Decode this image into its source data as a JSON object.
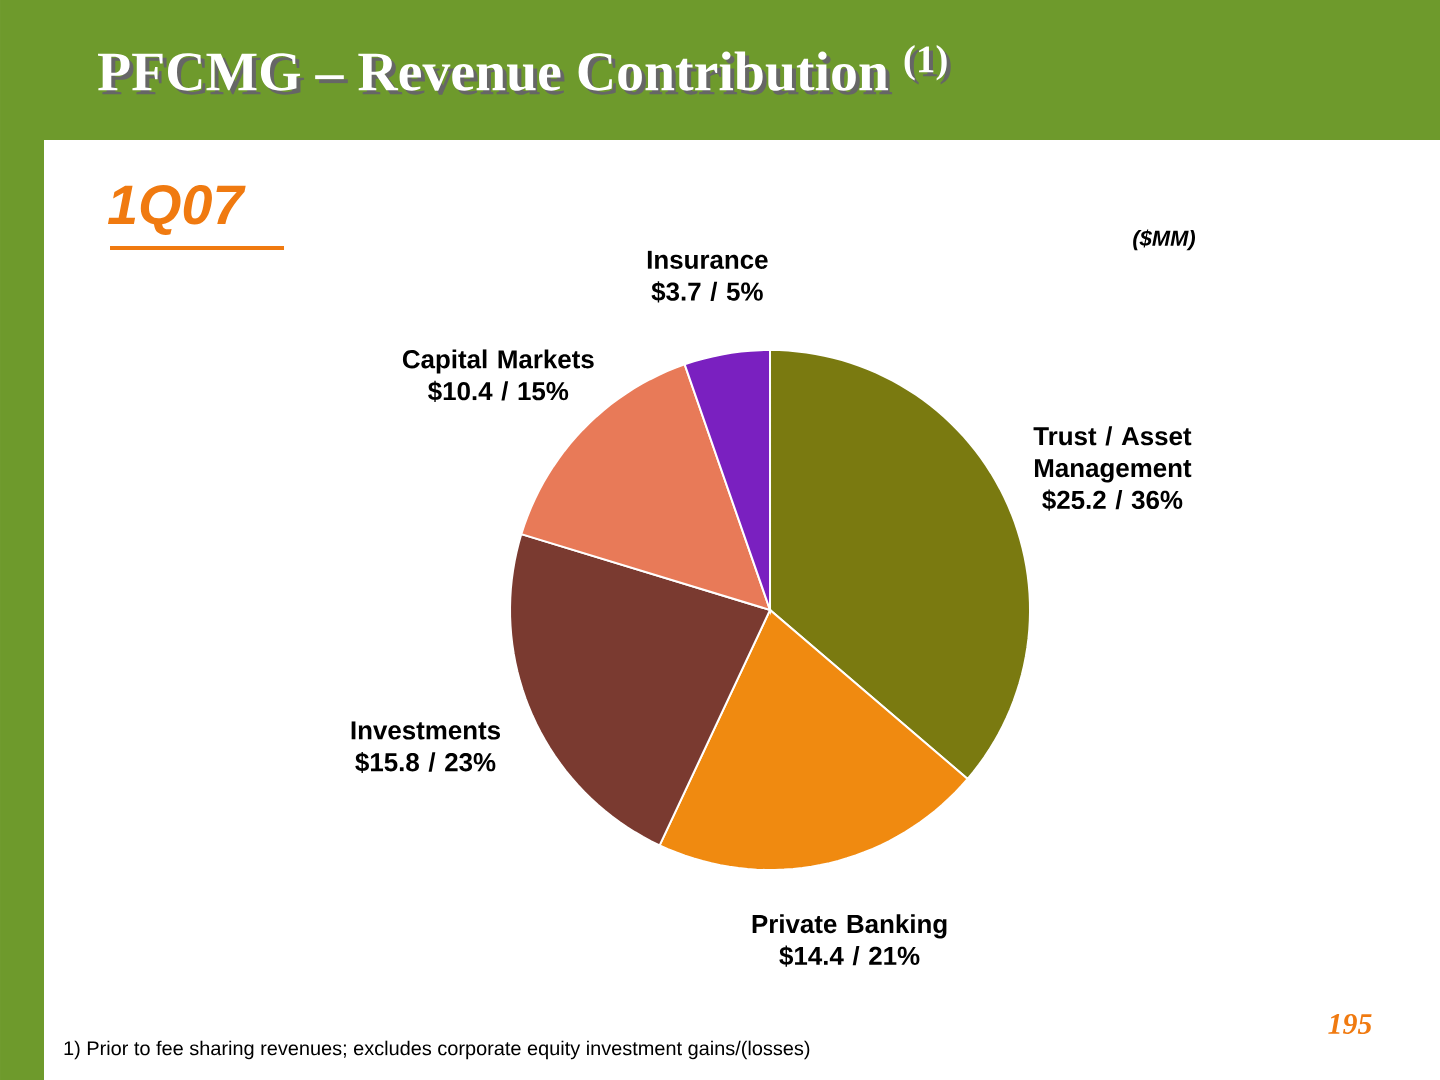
{
  "chart_data": {
    "type": "pie",
    "title": "PFCMG – Revenue Contribution $^{(1)}$",
    "subtitle": "1Q07",
    "categories": [
      "Trust / Asset Management",
      "Private Banking",
      "Investments",
      "Capital Markets",
      "Insurance"
    ],
    "values": [
      25.2,
      14.4,
      15.8,
      10.4,
      3.7
    ],
    "value_labels": [
      "$25.2 /  36%",
      "$14.4 / 21%",
      "$15.8 / 23%",
      "$10.4 / 15%",
      "$3.7 / 5%"
    ],
    "colors": [
      "#7a7a10",
      "#f08a10",
      "#7a3a30",
      "#e87a58",
      "#7a20c0"
    ],
    "annotations": [
      "($MM)",
      "1)    Prior to fee sharing revenues; excludes corporate equity investment gains/(losses)",
      "195"
    ]
  }
}
